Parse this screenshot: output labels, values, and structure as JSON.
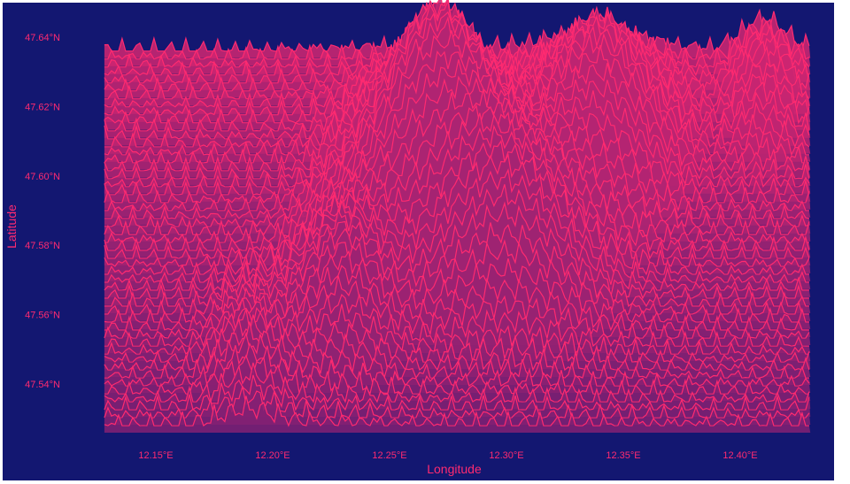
{
  "colors": {
    "background": "#131771",
    "ridge_line": "#ff2a70",
    "text": "#ff2a70",
    "ridge_fill_low": "#6e1f73",
    "ridge_fill_high": "#ff2a70"
  },
  "chart_data": {
    "type": "ridgeline",
    "title": "",
    "xlabel": "Longitude",
    "ylabel": "Latitude",
    "grid": false,
    "legend": "none",
    "xlim": [
      12.125,
      12.43
    ],
    "ylim": [
      47.525,
      47.645
    ],
    "x_ticks": [
      12.15,
      12.2,
      12.25,
      12.3,
      12.35,
      12.4
    ],
    "y_ticks": [
      47.54,
      47.56,
      47.58,
      47.6,
      47.62,
      47.64
    ],
    "x_tick_labels": [
      "12.15°E",
      "12.20°E",
      "12.25°E",
      "12.30°E",
      "12.35°E",
      "12.40°E"
    ],
    "y_tick_labels": [
      "47.54°N",
      "47.56°N",
      "47.58°N",
      "47.60°N",
      "47.62°N",
      "47.64°N"
    ],
    "ridge_count": 48,
    "ridge_lat_range": [
      47.528,
      47.636
    ],
    "x_extent": [
      12.128,
      12.43
    ],
    "peaks": [
      {
        "lon": 12.27,
        "lat": 47.6,
        "height": 0.045,
        "width": 0.045
      },
      {
        "lon": 12.34,
        "lat": 47.61,
        "height": 0.032,
        "width": 0.04
      },
      {
        "lon": 12.3,
        "lat": 47.575,
        "height": 0.03,
        "width": 0.05
      },
      {
        "lon": 12.23,
        "lat": 47.565,
        "height": 0.02,
        "width": 0.03
      },
      {
        "lon": 12.19,
        "lat": 47.545,
        "height": 0.01,
        "width": 0.025
      },
      {
        "lon": 12.41,
        "lat": 47.625,
        "height": 0.012,
        "width": 0.02
      }
    ]
  }
}
